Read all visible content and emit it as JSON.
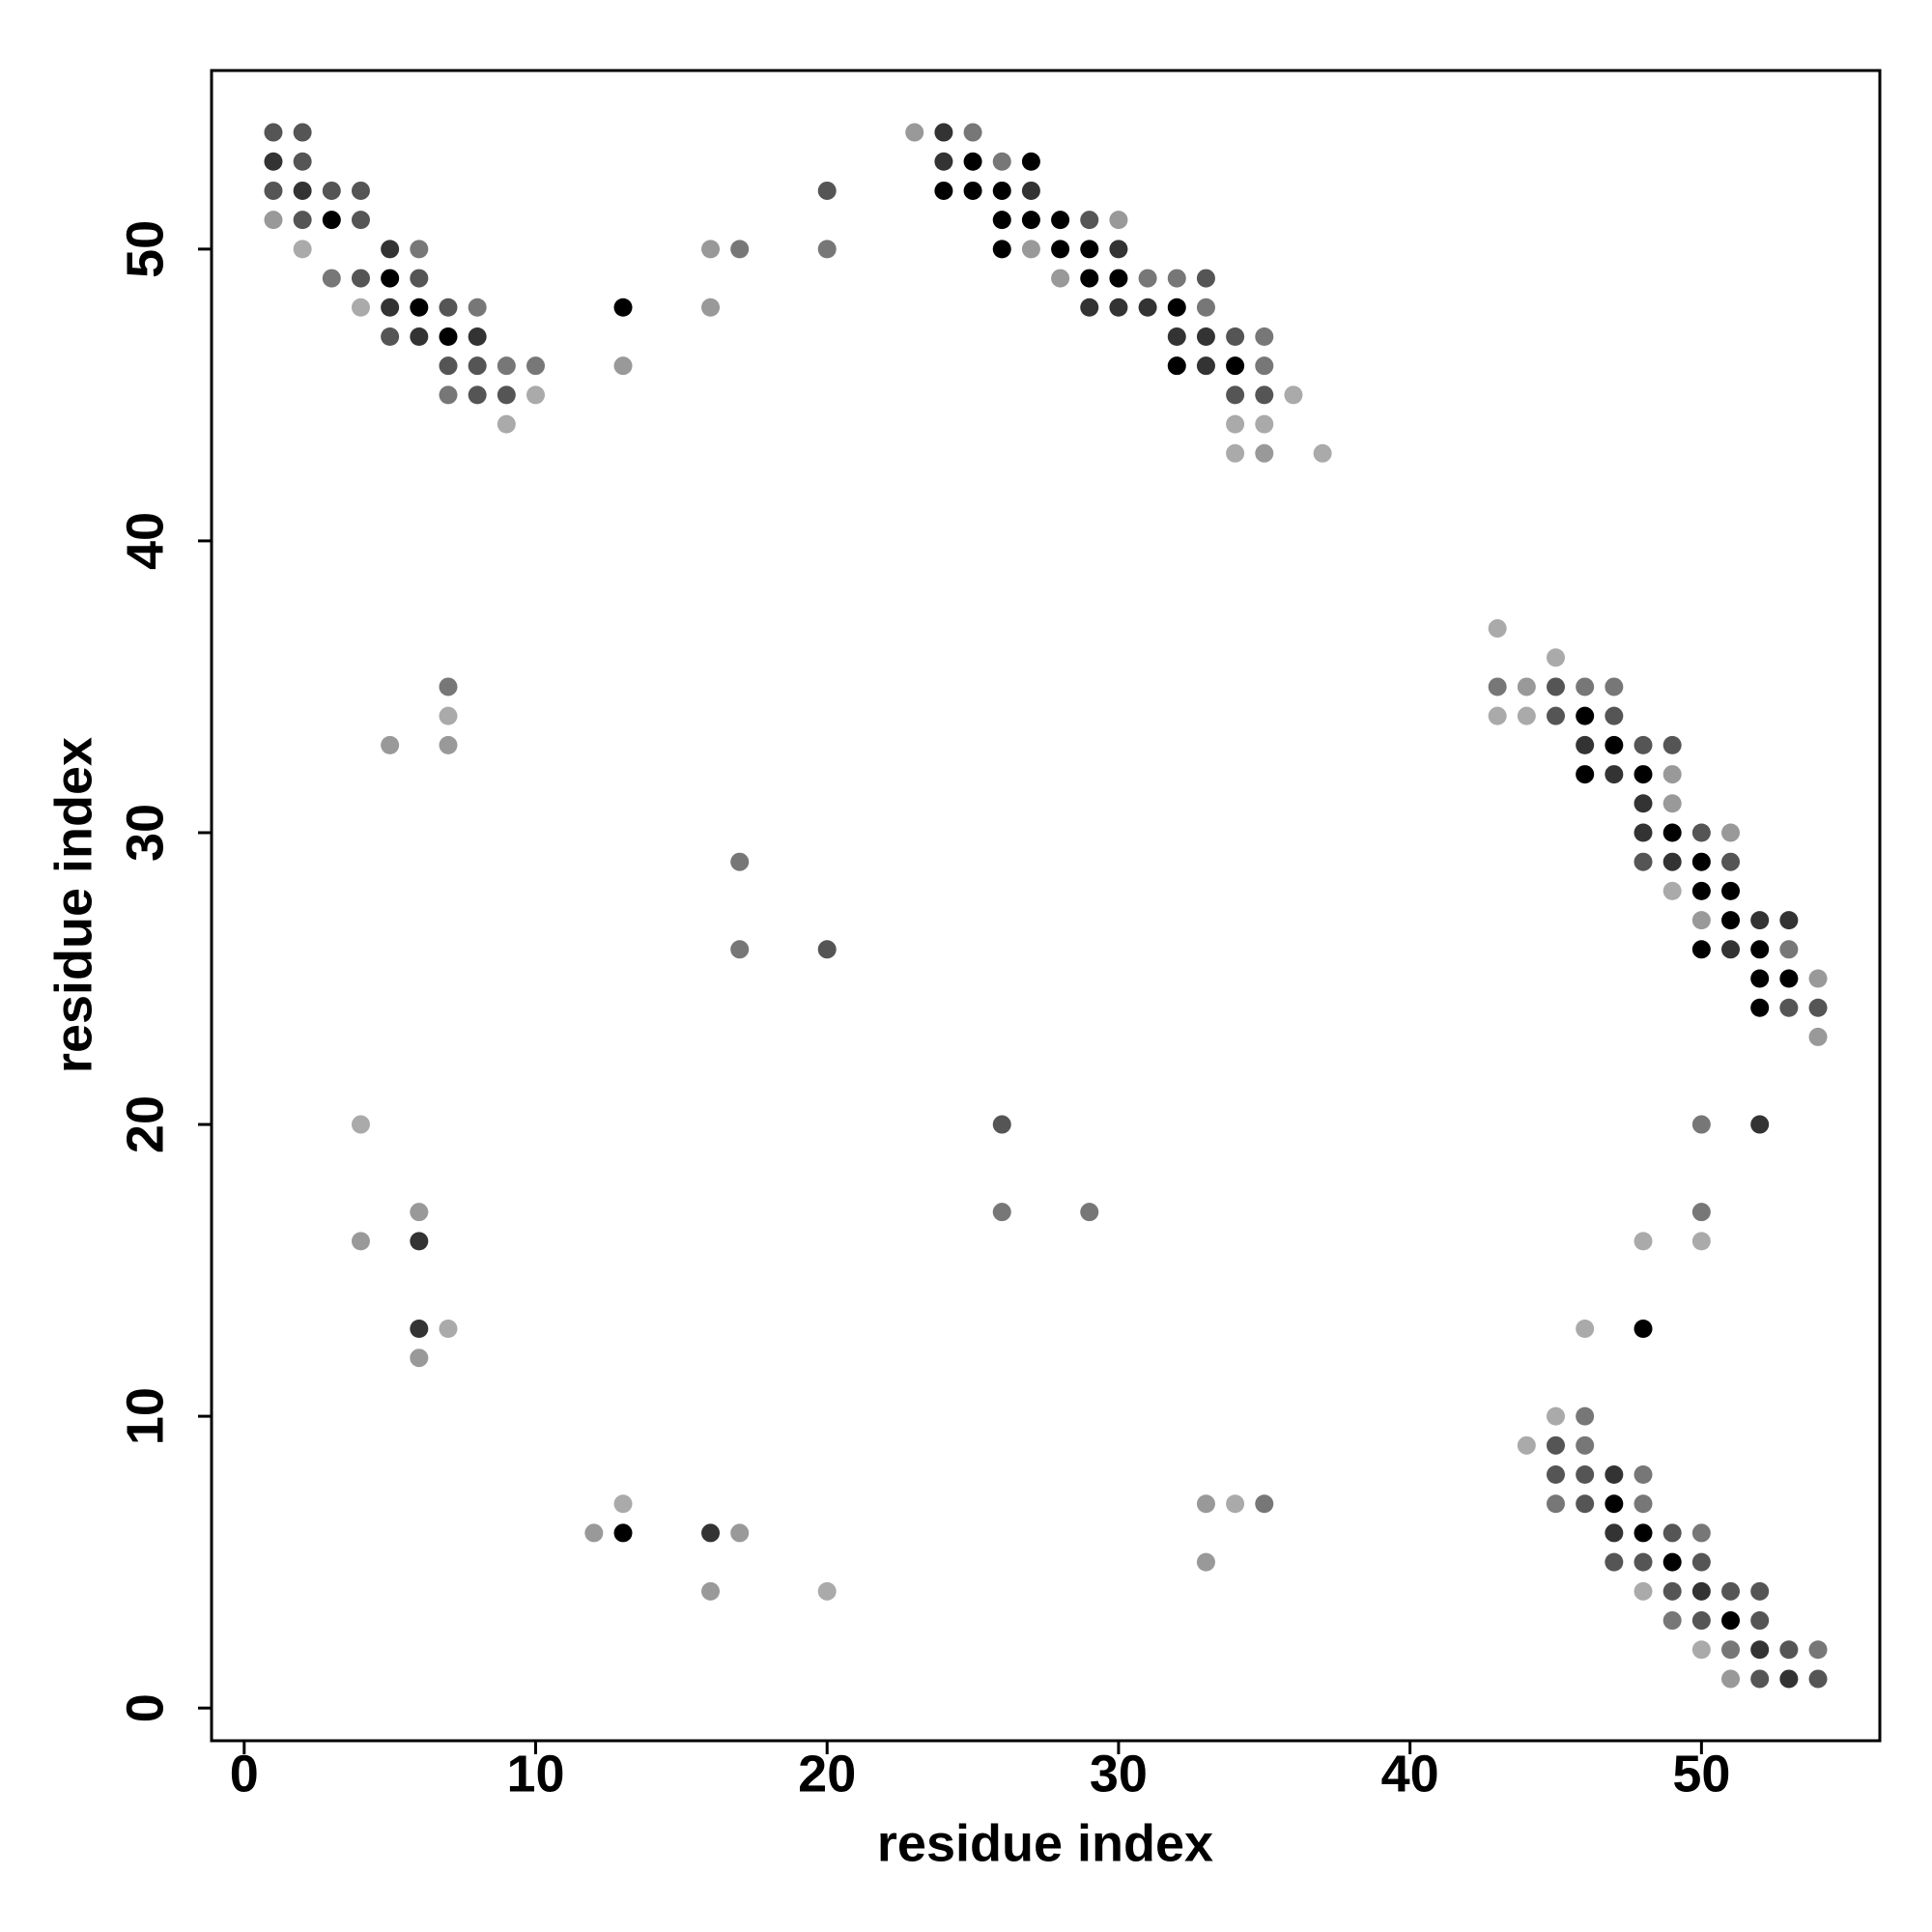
{
  "chart_data": {
    "type": "scatter",
    "xlabel": "residue index",
    "ylabel": "residue index",
    "xlim": [
      -1.12,
      56.12
    ],
    "ylim": [
      -1.12,
      56.12
    ],
    "xticks": [
      0,
      10,
      20,
      30,
      40,
      50
    ],
    "yticks": [
      0,
      10,
      20,
      30,
      40,
      50
    ],
    "x": [
      1,
      2,
      23,
      24,
      25,
      1,
      2,
      24,
      25,
      26,
      27,
      1,
      2,
      3,
      4,
      20,
      24,
      25,
      26,
      27,
      1,
      2,
      3,
      4,
      26,
      27,
      28,
      29,
      30,
      2,
      5,
      6,
      16,
      17,
      20,
      26,
      27,
      28,
      29,
      30,
      3,
      4,
      5,
      6,
      28,
      29,
      30,
      31,
      32,
      33,
      4,
      5,
      6,
      7,
      8,
      13,
      16,
      29,
      30,
      31,
      32,
      33,
      5,
      6,
      7,
      8,
      32,
      33,
      34,
      35,
      7,
      8,
      9,
      10,
      13,
      32,
      33,
      34,
      35,
      7,
      8,
      9,
      10,
      34,
      35,
      36,
      9,
      34,
      35,
      34,
      35,
      37,
      43,
      45,
      7,
      43,
      44,
      45,
      46,
      47,
      7,
      43,
      44,
      45,
      46,
      47,
      5,
      7,
      46,
      47,
      48,
      49,
      46,
      47,
      48,
      49,
      48,
      49,
      48,
      49,
      50,
      51,
      17,
      48,
      49,
      50,
      51,
      49,
      50,
      51,
      50,
      51,
      52,
      53,
      17,
      20,
      50,
      51,
      52,
      53,
      52,
      53,
      54,
      52,
      53,
      54,
      54,
      4,
      26,
      50,
      52,
      6,
      26,
      29,
      50,
      4,
      6,
      48,
      50,
      6,
      7,
      46,
      48,
      6,
      45,
      46,
      44,
      45,
      46,
      45,
      46,
      47,
      48,
      13,
      33,
      34,
      35,
      45,
      46,
      47,
      48,
      12,
      13,
      16,
      17,
      47,
      48,
      49,
      50,
      33,
      47,
      48,
      49,
      50,
      16,
      20,
      48,
      49,
      50,
      51,
      52,
      49,
      50,
      51,
      52,
      50,
      51,
      52,
      53,
      54,
      51,
      52,
      53,
      54
    ],
    "y": [
      54,
      54,
      54,
      54,
      54,
      53,
      53,
      53,
      53,
      53,
      53,
      52,
      52,
      52,
      52,
      52,
      52,
      52,
      52,
      52,
      51,
      51,
      51,
      51,
      51,
      51,
      51,
      51,
      51,
      50,
      50,
      50,
      50,
      50,
      50,
      50,
      50,
      50,
      50,
      50,
      49,
      49,
      49,
      49,
      49,
      49,
      49,
      49,
      49,
      49,
      48,
      48,
      48,
      48,
      48,
      48,
      48,
      48,
      48,
      48,
      48,
      48,
      47,
      47,
      47,
      47,
      47,
      47,
      47,
      47,
      46,
      46,
      46,
      46,
      46,
      46,
      46,
      46,
      46,
      45,
      45,
      45,
      45,
      45,
      45,
      45,
      44,
      44,
      44,
      43,
      43,
      43,
      37,
      36,
      35,
      35,
      35,
      35,
      35,
      35,
      34,
      34,
      34,
      34,
      34,
      34,
      33,
      33,
      33,
      33,
      33,
      33,
      32,
      32,
      32,
      32,
      31,
      31,
      30,
      30,
      30,
      30,
      29,
      29,
      29,
      29,
      29,
      28,
      28,
      28,
      27,
      27,
      27,
      27,
      26,
      26,
      26,
      26,
      26,
      26,
      25,
      25,
      25,
      24,
      24,
      24,
      23,
      20,
      20,
      20,
      20,
      17,
      17,
      17,
      17,
      16,
      16,
      16,
      16,
      13,
      13,
      13,
      13,
      12,
      10,
      10,
      9,
      9,
      9,
      8,
      8,
      8,
      8,
      7,
      7,
      7,
      7,
      7,
      7,
      7,
      7,
      6,
      6,
      6,
      6,
      6,
      6,
      6,
      6,
      5,
      5,
      5,
      5,
      5,
      4,
      4,
      4,
      4,
      4,
      4,
      4,
      3,
      3,
      3,
      3,
      2,
      2,
      2,
      2,
      2,
      1,
      1,
      1,
      1
    ],
    "colors": [
      "#555555",
      "#555555",
      "#999999",
      "#333333",
      "#777777",
      "#333333",
      "#555555",
      "#333333",
      "#000000",
      "#777777",
      "#000000",
      "#555555",
      "#333333",
      "#555555",
      "#555555",
      "#555555",
      "#000000",
      "#000000",
      "#000000",
      "#333333",
      "#999999",
      "#555555",
      "#000000",
      "#555555",
      "#000000",
      "#000000",
      "#000000",
      "#555555",
      "#999999",
      "#aaaaaa",
      "#333333",
      "#777777",
      "#999999",
      "#777777",
      "#777777",
      "#000000",
      "#999999",
      "#000000",
      "#000000",
      "#333333",
      "#777777",
      "#555555",
      "#000000",
      "#555555",
      "#999999",
      "#000000",
      "#000000",
      "#777777",
      "#777777",
      "#555555",
      "#aaaaaa",
      "#333333",
      "#000000",
      "#555555",
      "#777777",
      "#000000",
      "#999999",
      "#333333",
      "#333333",
      "#333333",
      "#000000",
      "#777777",
      "#555555",
      "#333333",
      "#000000",
      "#333333",
      "#333333",
      "#333333",
      "#555555",
      "#777777",
      "#555555",
      "#555555",
      "#777777",
      "#777777",
      "#999999",
      "#000000",
      "#333333",
      "#000000",
      "#777777",
      "#777777",
      "#555555",
      "#555555",
      "#aaaaaa",
      "#555555",
      "#555555",
      "#aaaaaa",
      "#aaaaaa",
      "#aaaaaa",
      "#aaaaaa",
      "#aaaaaa",
      "#999999",
      "#aaaaaa",
      "#aaaaaa",
      "#aaaaaa",
      "#777777",
      "#777777",
      "#999999",
      "#555555",
      "#777777",
      "#777777",
      "#aaaaaa",
      "#aaaaaa",
      "#aaaaaa",
      "#555555",
      "#000000",
      "#555555",
      "#999999",
      "#999999",
      "#333333",
      "#000000",
      "#555555",
      "#555555",
      "#000000",
      "#333333",
      "#000000",
      "#999999",
      "#333333",
      "#999999",
      "#333333",
      "#000000",
      "#555555",
      "#999999",
      "#777777",
      "#555555",
      "#333333",
      "#000000",
      "#555555",
      "#aaaaaa",
      "#000000",
      "#000000",
      "#999999",
      "#000000",
      "#333333",
      "#333333",
      "#777777",
      "#555555",
      "#000000",
      "#333333",
      "#000000",
      "#777777",
      "#000000",
      "#000000",
      "#999999",
      "#000000",
      "#555555",
      "#555555",
      "#999999",
      "#aaaaaa",
      "#555555",
      "#777777",
      "#333333",
      "#999999",
      "#777777",
      "#777777",
      "#777777",
      "#999999",
      "#333333",
      "#aaaaaa",
      "#aaaaaa",
      "#333333",
      "#aaaaaa",
      "#aaaaaa",
      "#000000",
      "#999999",
      "#aaaaaa",
      "#777777",
      "#aaaaaa",
      "#555555",
      "#777777",
      "#555555",
      "#555555",
      "#333333",
      "#777777",
      "#aaaaaa",
      "#999999",
      "#aaaaaa",
      "#777777",
      "#777777",
      "#555555",
      "#000000",
      "#777777",
      "#999999",
      "#000000",
      "#333333",
      "#999999",
      "#333333",
      "#000000",
      "#555555",
      "#777777",
      "#999999",
      "#555555",
      "#555555",
      "#000000",
      "#555555",
      "#999999",
      "#aaaaaa",
      "#aaaaaa",
      "#555555",
      "#333333",
      "#555555",
      "#555555",
      "#777777",
      "#555555",
      "#000000",
      "#555555",
      "#aaaaaa",
      "#777777",
      "#333333",
      "#555555",
      "#777777",
      "#999999",
      "#555555",
      "#333333",
      "#555555"
    ]
  }
}
